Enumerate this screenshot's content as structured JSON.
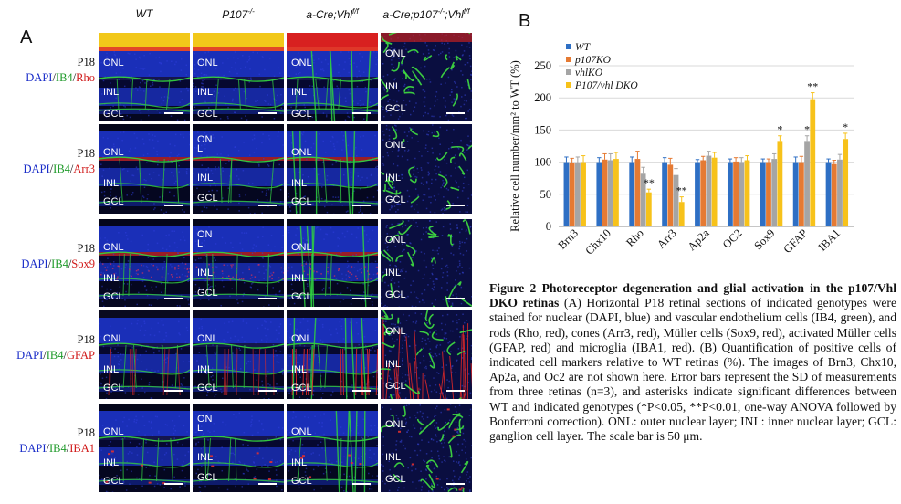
{
  "panel_a_label": "A",
  "panel_b_label": "B",
  "columns": [
    {
      "name": "WT",
      "sup": ""
    },
    {
      "name": "P107",
      "sup": "-/-"
    },
    {
      "name": "a-Cre;Vhl",
      "sup": "f/f"
    },
    {
      "name": "a-Cre;p107",
      "sup": "-/-",
      "name2": ";Vhl",
      "sup2": "f/f"
    }
  ],
  "rows": [
    {
      "age": "P18",
      "dapi": "DAPI",
      "ib4": "IB4",
      "marker": "Rho",
      "layers": [
        [
          "ONL",
          "INL",
          "GCL"
        ],
        [
          "ONL",
          "INL",
          "GCL"
        ],
        [
          "ONL",
          "INL",
          "GCL"
        ],
        [
          "ONL",
          "INL",
          "GCL"
        ]
      ]
    },
    {
      "age": "P18",
      "dapi": "DAPI",
      "ib4": "IB4",
      "marker": "Arr3",
      "layers": [
        [
          "ONL",
          "INL",
          "GCL"
        ],
        [
          "ON",
          "L",
          "INL",
          "GCL"
        ],
        [
          "ONL",
          "INL",
          "GCL"
        ],
        [
          "ONL",
          "INL",
          "GCL"
        ]
      ]
    },
    {
      "age": "P18",
      "dapi": "DAPI",
      "ib4": "IB4",
      "marker": "Sox9",
      "layers": [
        [
          "ONL",
          "INL",
          "GCL"
        ],
        [
          "ON",
          "L",
          "INL",
          "GCL"
        ],
        [
          "ONL",
          "INL",
          "GCL"
        ],
        [
          "ONL",
          "INL",
          "GCL"
        ]
      ]
    },
    {
      "age": "P18",
      "dapi": "DAPI",
      "ib4": "IB4",
      "marker": "GFAP",
      "layers": [
        [
          "ONL",
          "INL",
          "GCL"
        ],
        [
          "ONL",
          "INL",
          "GCL"
        ],
        [
          "ONL",
          "INL",
          "GCL"
        ],
        [
          "ONL",
          "INL",
          "GCL"
        ]
      ]
    },
    {
      "age": "P18",
      "dapi": "DAPI",
      "ib4": "IB4",
      "marker": "IBA1",
      "layers": [
        [
          "ONL",
          "INL",
          "GCL"
        ],
        [
          "ON",
          "L",
          "INL",
          "GCL"
        ],
        [
          "ONL",
          "INL",
          "GCL"
        ],
        [
          "ONL",
          "INL",
          "GCL"
        ]
      ]
    }
  ],
  "chart_data": {
    "type": "bar",
    "ylabel": "Relative cell number/mm² to WT (%)",
    "ylim": [
      0,
      250
    ],
    "yticks": [
      0,
      50,
      100,
      150,
      200,
      250
    ],
    "grid": true,
    "legend_position": "top-left",
    "categories": [
      "Brn3",
      "Chx10",
      "Rho",
      "Arr3",
      "Ap2a",
      "OC2",
      "Sox9",
      "GFAP",
      "IBA1"
    ],
    "series": [
      {
        "name": "WT",
        "color": "#2e6fc4",
        "values": [
          100,
          100,
          100,
          100,
          100,
          100,
          100,
          100,
          100
        ],
        "errors": [
          8,
          7,
          8,
          7,
          4,
          5,
          5,
          8,
          5
        ]
      },
      {
        "name": "p107KO",
        "color": "#e57a33",
        "values": [
          98,
          104,
          105,
          96,
          103,
          101,
          100,
          100,
          97
        ],
        "errors": [
          8,
          9,
          12,
          10,
          6,
          6,
          5,
          9,
          6
        ]
      },
      {
        "name": "vhlKO",
        "color": "#a5a5a5",
        "values": [
          99,
          103,
          82,
          80,
          110,
          100,
          105,
          133,
          104
        ],
        "errors": [
          9,
          10,
          10,
          10,
          7,
          7,
          8,
          8,
          8
        ]
      },
      {
        "name": "P107/vhl DKO",
        "color": "#f7c21a",
        "values": [
          100,
          105,
          53,
          38,
          107,
          103,
          133,
          198,
          136
        ],
        "errors": [
          10,
          10,
          5,
          8,
          8,
          7,
          8,
          10,
          9
        ]
      }
    ],
    "annotations": [
      {
        "category": "Rho",
        "series": "P107/vhl DKO",
        "text": "**"
      },
      {
        "category": "Arr3",
        "series": "P107/vhl DKO",
        "text": "**"
      },
      {
        "category": "Sox9",
        "series": "P107/vhl DKO",
        "text": "*"
      },
      {
        "category": "GFAP",
        "series": "vhlKO",
        "text": "*"
      },
      {
        "category": "GFAP",
        "series": "P107/vhl DKO",
        "text": "**"
      },
      {
        "category": "IBA1",
        "series": "P107/vhl DKO",
        "text": "*"
      }
    ]
  },
  "caption": {
    "title": "Figure 2   Photoreceptor degeneration and glial activation in the p107/Vhl DKO retinas",
    "body": "(A) Horizontal P18 retinal sections of indicated genotypes were stained for nuclear (DAPI, blue) and vascular endothelium cells (IB4, green), and rods (Rho, red), cones (Arr3, red), Müller cells (Sox9, red), activated Müller cells (GFAP, red) and microglia (IBA1, red). (B) Quantification of positive cells of indicated cell markers relative to WT retinas (%). The images of Brn3, Chx10, Ap2a, and Oc2 are not shown here. Error bars represent the SD of measurements from three retinas (n=3), and asterisks indicate significant differences between WT and indicated genotypes (*P<0.05, **P<0.01, one-way ANOVA followed by Bonferroni correction). ONL: outer nuclear layer; INL: inner nuclear layer; GCL: ganglion cell layer. The scale bar is 50 μm."
  }
}
